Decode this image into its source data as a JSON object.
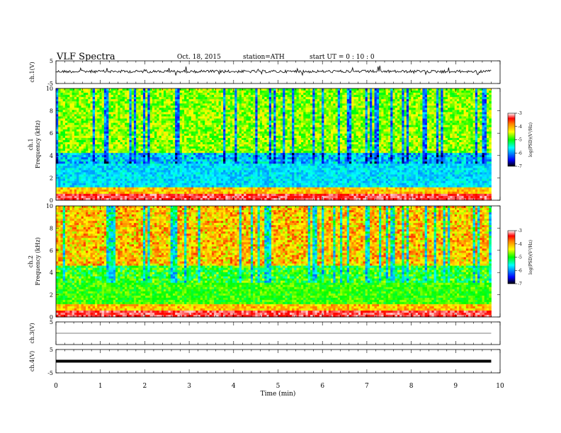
{
  "header": {
    "title": "VLF Spectra",
    "date": "Oct. 18, 2015",
    "station": "station=ATH",
    "start": "start  UT =   0 : 10 : 0"
  },
  "chart_data": [
    {
      "type": "line",
      "panel": "ch1-waveform",
      "ylabel": "ch.1(V)",
      "ylim": [
        -5,
        5
      ],
      "y_ticks": [
        "5",
        "-5"
      ],
      "baseline": 0.3,
      "note": "noisy signal with impulsive spikes"
    },
    {
      "type": "heatmap",
      "panel": "ch1-spectrogram",
      "ylabel": "ch.1\nFrequency (kHz)",
      "ylim": [
        0,
        10
      ],
      "y_ticks": [
        "0",
        "2",
        "4",
        "6",
        "8",
        "10"
      ],
      "colorbar": {
        "label": "log(PSD)(V²/Hz)",
        "range": [
          -7,
          -3
        ],
        "ticks": [
          "-3",
          "-4",
          "-5",
          "-6",
          "-7"
        ]
      },
      "colormap": [
        "#000000",
        "#0000ff",
        "#00ffff",
        "#00ff00",
        "#ffff00",
        "#ff8000",
        "#ff0000",
        "#ffffff"
      ]
    },
    {
      "type": "heatmap",
      "panel": "ch2-spectrogram",
      "ylabel": "ch.2\nFrequency (kHz)",
      "ylim": [
        0,
        10
      ],
      "y_ticks": [
        "0",
        "2",
        "4",
        "6",
        "8",
        "10"
      ],
      "colorbar": {
        "label": "log(PSD)(V²/Hz)",
        "range": [
          -7,
          -3
        ],
        "ticks": [
          "-3",
          "-4",
          "-5",
          "-6",
          "-7"
        ]
      }
    },
    {
      "type": "line",
      "panel": "ch3-waveform",
      "ylabel": "ch.3(V)",
      "ylim": [
        -5,
        5
      ],
      "y_ticks": [
        "5"
      ],
      "baseline": 0
    },
    {
      "type": "line",
      "panel": "ch4-waveform",
      "ylabel": "ch.4(V)",
      "ylim": [
        -5,
        5
      ],
      "y_ticks": [
        "5",
        "-5"
      ],
      "baseline": 0
    }
  ],
  "x_axis": {
    "label": "Time  (min)",
    "range": [
      0,
      10
    ],
    "ticks": [
      "0",
      "1",
      "2",
      "3",
      "4",
      "5",
      "6",
      "7",
      "8",
      "9",
      "10"
    ],
    "data_end": 9.8
  }
}
